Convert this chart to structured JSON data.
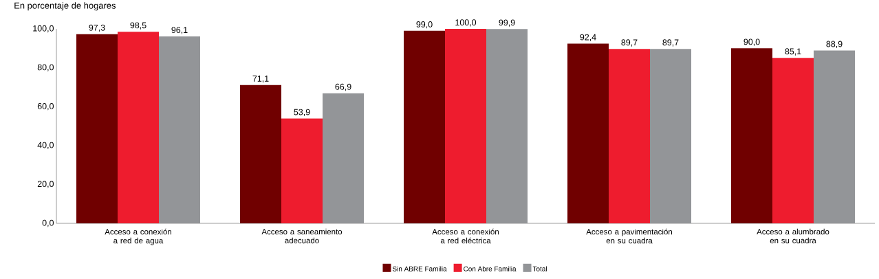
{
  "chart_data": {
    "type": "bar",
    "subtitle": "En porcentaje de hogares",
    "categories": [
      "Acceso  a conexión a red de agua",
      "Acceso a saneamiento adecuado",
      "Acceso a conexión a red eléctrica",
      "Acceso a pavimentación en su cuadra",
      "Acceso a alumbrado en su cuadra"
    ],
    "series": [
      {
        "name": "Sin ABRE Familia",
        "color": "#700000",
        "values": [
          97.3,
          71.1,
          99.0,
          92.4,
          90.0
        ],
        "value_labels": [
          "97,3",
          "71,1",
          "99,0",
          "92,4",
          "90,0"
        ]
      },
      {
        "name": "Con Abre Familia",
        "color": "#ee1c2e",
        "values": [
          98.5,
          53.9,
          100.0,
          89.7,
          85.1
        ],
        "value_labels": [
          "98,5",
          "53,9",
          "100,0",
          "89,7",
          "85,1"
        ]
      },
      {
        "name": "Total",
        "color": "#939598",
        "values": [
          96.1,
          66.9,
          99.9,
          89.7,
          88.9
        ],
        "value_labels": [
          "96,1",
          "66,9",
          "99,9",
          "89,7",
          "88,9"
        ]
      }
    ],
    "ylim": [
      0,
      100
    ],
    "yticks": [
      {
        "value": 0,
        "label": "0,0"
      },
      {
        "value": 20,
        "label": "20,0"
      },
      {
        "value": 40,
        "label": "40,0"
      },
      {
        "value": 60,
        "label": "60,0"
      },
      {
        "value": 80,
        "label": "80,0"
      },
      {
        "value": 100,
        "label": "100,0"
      }
    ],
    "grid": false,
    "legend": "bottom"
  }
}
